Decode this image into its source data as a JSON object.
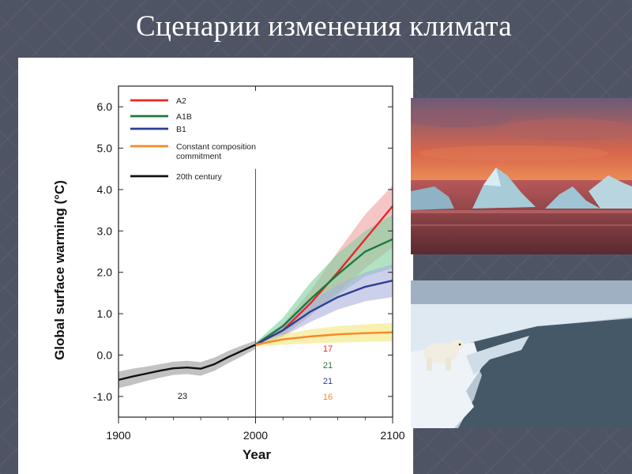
{
  "slide": {
    "title": "Сценарии изменения климата"
  },
  "photos": [
    {
      "name": "arctic-sunset-photo",
      "subject": "icebergs at sunset"
    },
    {
      "name": "polar-bear-photo",
      "subject": "polar bear on ice edge"
    }
  ],
  "chart_data": {
    "type": "line",
    "xlabel": "Year",
    "ylabel": "Global surface warming (°C)",
    "xlim": [
      1900,
      2100
    ],
    "ylim": [
      -1.5,
      6.5
    ],
    "x_ticks": [
      "1900",
      "2000",
      "2100"
    ],
    "y_ticks": [
      "-1.0",
      "0.0",
      "1.0",
      "2.0",
      "3.0",
      "4.0",
      "5.0",
      "6.0"
    ],
    "grid": false,
    "legend_position": "top-left",
    "vertical_marker_x": 2000,
    "series": [
      {
        "name": "A2",
        "color": "#e8262b",
        "band": "#f0a0a0",
        "x": [
          2000,
          2020,
          2040,
          2060,
          2080,
          2100
        ],
        "values": [
          0.25,
          0.6,
          1.25,
          2.0,
          2.8,
          3.6
        ],
        "lower": [
          0.2,
          0.45,
          0.95,
          1.5,
          2.1,
          2.6
        ],
        "upper": [
          0.3,
          0.75,
          1.55,
          2.5,
          3.4,
          4.1
        ],
        "count": "17"
      },
      {
        "name": "A1B",
        "color": "#1c7a3c",
        "band": "#7fcf9c",
        "x": [
          2000,
          2020,
          2040,
          2060,
          2080,
          2100
        ],
        "values": [
          0.25,
          0.7,
          1.35,
          1.95,
          2.5,
          2.8
        ],
        "lower": [
          0.2,
          0.5,
          1.0,
          1.45,
          1.9,
          2.1
        ],
        "upper": [
          0.3,
          0.9,
          1.75,
          2.45,
          3.0,
          3.4
        ],
        "count": "21"
      },
      {
        "name": "B1",
        "color": "#2e3f96",
        "band": "#aab0dc",
        "x": [
          2000,
          2020,
          2040,
          2060,
          2080,
          2100
        ],
        "values": [
          0.25,
          0.6,
          1.05,
          1.4,
          1.65,
          1.8
        ],
        "lower": [
          0.2,
          0.45,
          0.8,
          1.1,
          1.3,
          1.4
        ],
        "upper": [
          0.3,
          0.75,
          1.3,
          1.7,
          2.0,
          2.2
        ],
        "count": "21"
      },
      {
        "name": "Constant composition commitment",
        "color": "#f5892a",
        "band": "#f3e67a",
        "x": [
          2000,
          2020,
          2040,
          2060,
          2080,
          2100
        ],
        "values": [
          0.25,
          0.38,
          0.45,
          0.5,
          0.53,
          0.55
        ],
        "lower": [
          0.2,
          0.25,
          0.28,
          0.3,
          0.32,
          0.33
        ],
        "upper": [
          0.3,
          0.5,
          0.62,
          0.7,
          0.74,
          0.78
        ],
        "count": "16"
      },
      {
        "name": "20th century",
        "color": "#111111",
        "band": "#9a9a9a",
        "x": [
          1900,
          1910,
          1920,
          1930,
          1940,
          1950,
          1960,
          1970,
          1980,
          1990,
          2000
        ],
        "values": [
          -0.6,
          -0.52,
          -0.45,
          -0.38,
          -0.32,
          -0.3,
          -0.33,
          -0.22,
          -0.05,
          0.1,
          0.25
        ],
        "lower": [
          -0.8,
          -0.72,
          -0.63,
          -0.55,
          -0.48,
          -0.46,
          -0.5,
          -0.38,
          -0.2,
          -0.03,
          0.15
        ],
        "upper": [
          -0.4,
          -0.33,
          -0.28,
          -0.22,
          -0.16,
          -0.14,
          -0.17,
          -0.06,
          0.1,
          0.23,
          0.35
        ],
        "count": "23"
      }
    ]
  }
}
